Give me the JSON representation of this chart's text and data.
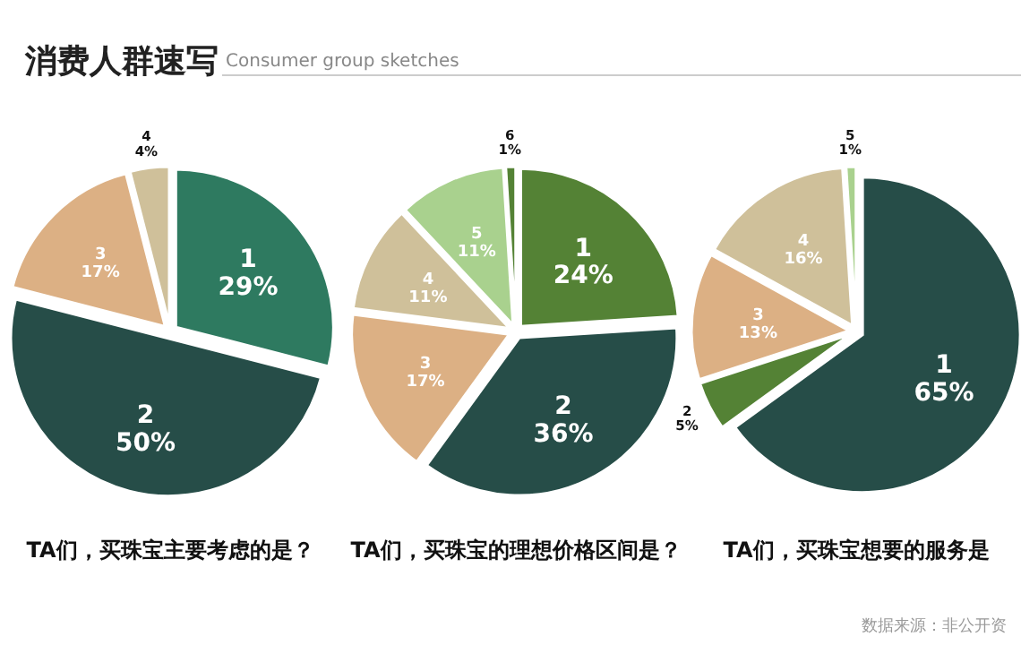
{
  "chart_data": [
    {
      "type": "other",
      "title": "消费人群速写",
      "subtitle": "Consumer group sketches",
      "annotations": [
        "数据来源：非公开资"
      ]
    },
    {
      "type": "pie",
      "title": "TA们，买珠宝主要考虑的是？",
      "categories": [
        "1",
        "2",
        "3",
        "4"
      ],
      "values": [
        29,
        50,
        17,
        4
      ],
      "value_labels": [
        "29%",
        "50%",
        "17%",
        "4%"
      ],
      "colors": [
        "#2e7a60",
        "#264d48",
        "#dcb084",
        "#cfc09a"
      ]
    },
    {
      "type": "pie",
      "title": "TA们，买珠宝的理想价格区间是？",
      "categories": [
        "1",
        "2",
        "3",
        "4",
        "5",
        "6"
      ],
      "values": [
        24,
        36,
        17,
        11,
        11,
        1
      ],
      "value_labels": [
        "24%",
        "36%",
        "17%",
        "11%",
        "11%",
        "1%"
      ],
      "colors": [
        "#548235",
        "#264d48",
        "#dcb084",
        "#cfc09a",
        "#a9d18e",
        "#548235"
      ]
    },
    {
      "type": "pie",
      "title": "TA们，买珠宝想要的服务是",
      "categories": [
        "1",
        "2",
        "3",
        "4",
        "5"
      ],
      "values": [
        65,
        5,
        13,
        16,
        1
      ],
      "value_labels": [
        "65%",
        "5%",
        "13%",
        "16%",
        "1%"
      ],
      "colors": [
        "#264d48",
        "#548235",
        "#dcb084",
        "#cfc09a",
        "#a9d18e"
      ]
    }
  ]
}
